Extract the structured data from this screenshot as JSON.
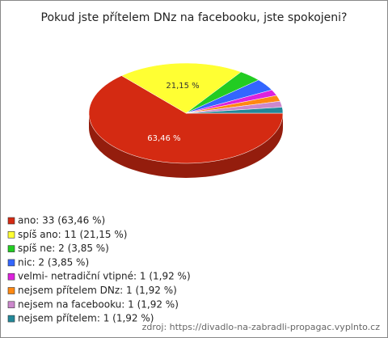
{
  "chart_data": {
    "type": "pie",
    "title": "Pokud jste přítelem DNz na facebooku, jste spokojeni?",
    "categories": [
      "ano: 33 (63,46 %)",
      "spíš ano: 11 (21,15 %)",
      "spíš ne: 2 (3,85 %)",
      "nic: 2 (3,85 %)",
      "velmi- netradiční vtipné: 1 (1,92 %)",
      "nejsem přítelem DNz: 1 (1,92 %)",
      "nejsem na facebooku: 1 (1,92 %)",
      "nejsem přítelem: 1 (1,92 %)"
    ],
    "values": [
      63.46,
      21.15,
      3.85,
      3.85,
      1.92,
      1.92,
      1.92,
      1.92
    ],
    "value_labels": [
      "63,46 %",
      "21,15 %",
      null,
      null,
      null,
      null,
      null,
      null
    ],
    "colors": [
      "#d42a12",
      "#ffff33",
      "#22cc22",
      "#3366ff",
      "#dd22dd",
      "#ff8811",
      "#cc88cc",
      "#228899"
    ],
    "source": "zdroj: https://divadlo-na-zabradli-propagac.vyplnto.cz"
  }
}
